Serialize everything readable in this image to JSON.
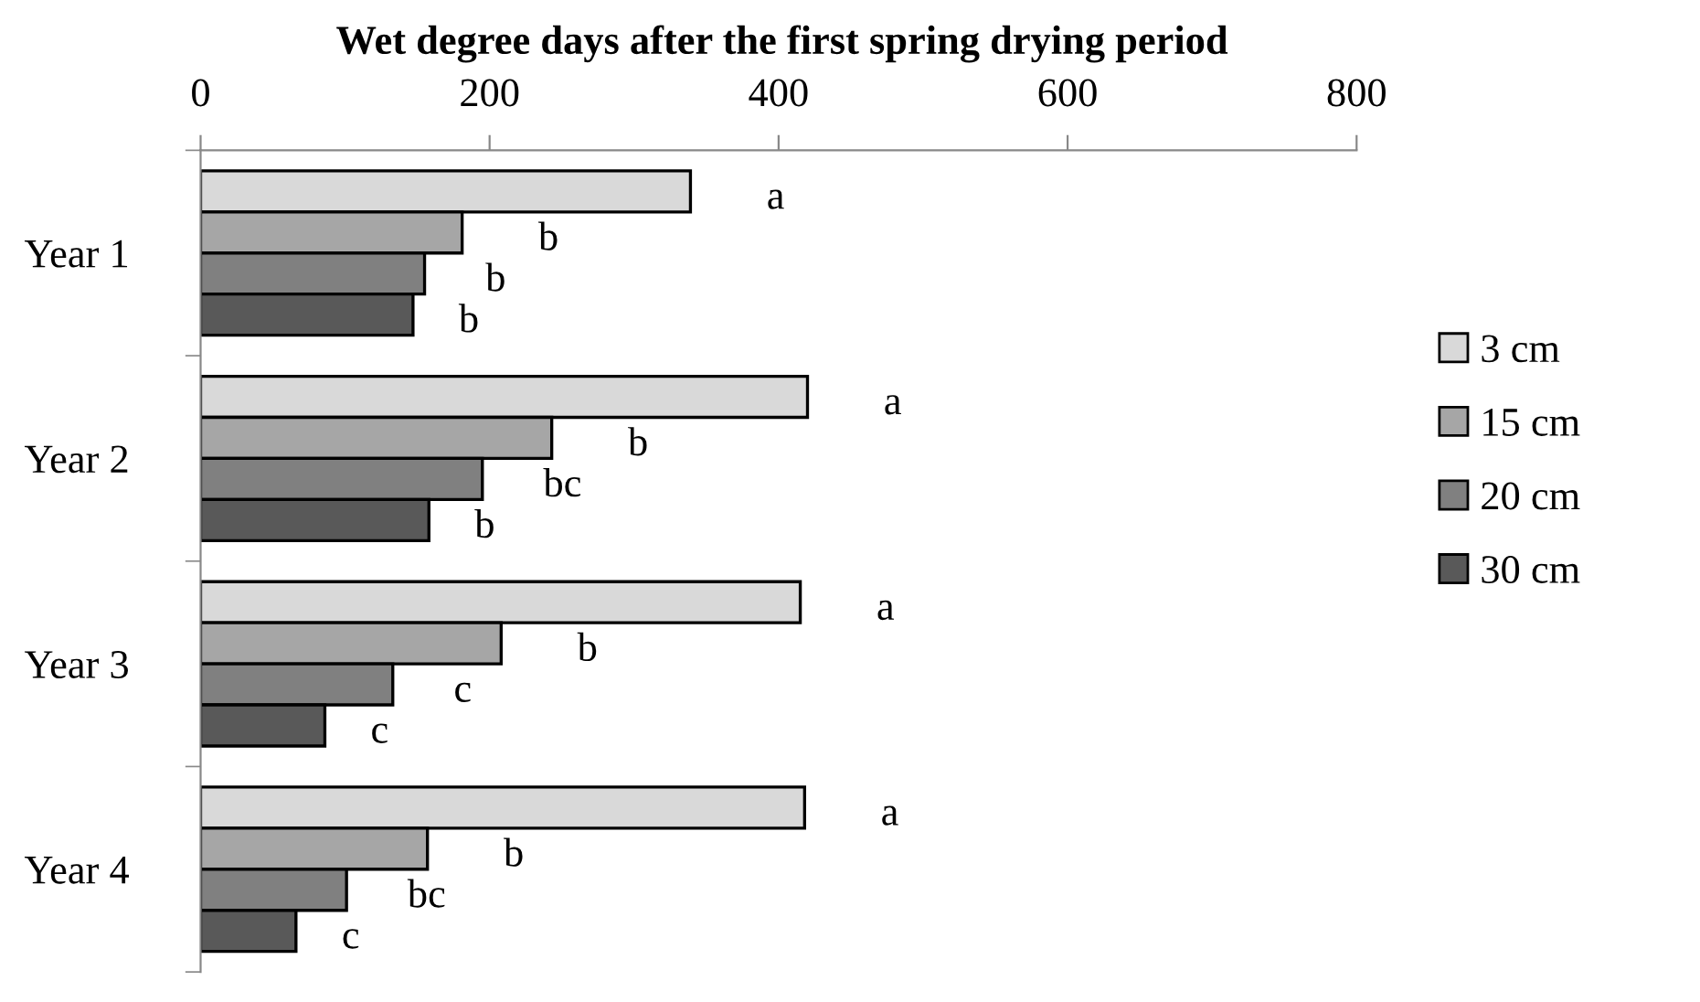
{
  "chart_data": {
    "type": "bar",
    "orientation": "horizontal",
    "title": "Wet degree days after the first spring drying period",
    "categories": [
      "Year 1",
      "Year 2",
      "Year 3",
      "Year 4"
    ],
    "series": [
      {
        "name": "3 cm",
        "color": "#d9d9d9",
        "values": [
          339,
          420,
          415,
          418
        ]
      },
      {
        "name": "15 cm",
        "color": "#a6a6a6",
        "values": [
          181,
          243,
          208,
          157
        ]
      },
      {
        "name": "20 cm",
        "color": "#808080",
        "values": [
          155,
          195,
          133,
          101
        ]
      },
      {
        "name": "30 cm",
        "color": "#595959",
        "values": [
          147,
          158,
          86,
          66
        ]
      }
    ],
    "xlim": [
      0,
      800
    ],
    "xticks": [
      0,
      200,
      400,
      600,
      800
    ],
    "grid": false,
    "legend": "right",
    "annotations": [
      "a",
      "b",
      "b",
      "b",
      "a",
      "b",
      "bc",
      "b",
      "a",
      "b",
      "c",
      "c",
      "a",
      "b",
      "bc",
      "c"
    ]
  }
}
